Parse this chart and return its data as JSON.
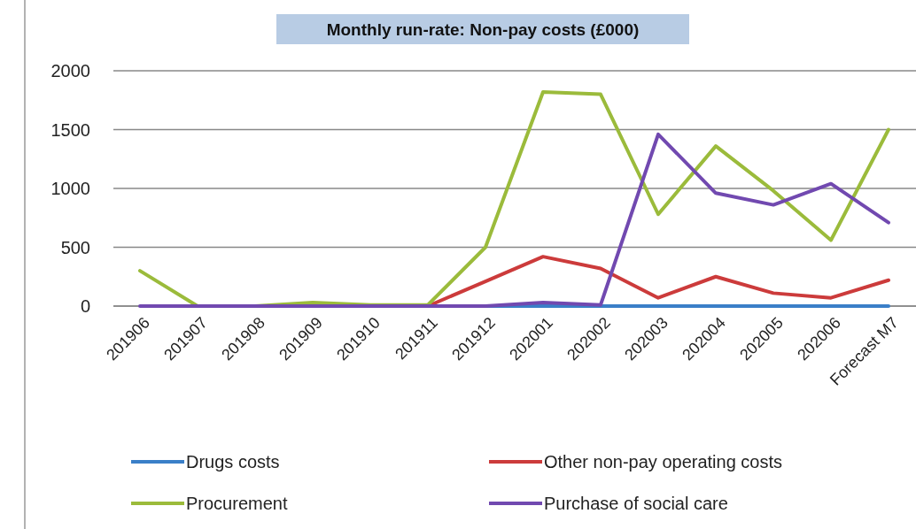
{
  "chart_data": {
    "type": "line",
    "title": "Monthly run-rate: Non-pay costs (£000)",
    "categories": [
      "201906",
      "201907",
      "201908",
      "201909",
      "201910",
      "201911",
      "201912",
      "202001",
      "202002",
      "202003",
      "202004",
      "202005",
      "202006",
      "Forecast M7"
    ],
    "series": [
      {
        "name": "Drugs costs",
        "color": "#3a7fc8",
        "values": [
          null,
          null,
          null,
          null,
          null,
          0,
          0,
          0,
          0,
          0,
          0,
          0,
          0,
          0
        ]
      },
      {
        "name": "Other non-pay operating costs",
        "color": "#cc3b3b",
        "values": [
          null,
          null,
          null,
          null,
          0,
          0,
          210,
          420,
          320,
          70,
          250,
          110,
          70,
          220
        ]
      },
      {
        "name": "Procurement",
        "color": "#9bbb3b",
        "values": [
          300,
          0,
          0,
          30,
          10,
          10,
          500,
          1820,
          1800,
          780,
          1360,
          980,
          560,
          1500
        ]
      },
      {
        "name": "Purchase of social care",
        "color": "#7149b0",
        "values": [
          0,
          0,
          0,
          0,
          0,
          0,
          0,
          30,
          10,
          1460,
          960,
          860,
          1040,
          710
        ]
      }
    ],
    "ylim": [
      0,
      2000
    ],
    "yticks": [
      0,
      500,
      1000,
      1500,
      2000
    ],
    "grid": "y",
    "legend": "bottom",
    "marker": "none",
    "line_style": "solid"
  }
}
